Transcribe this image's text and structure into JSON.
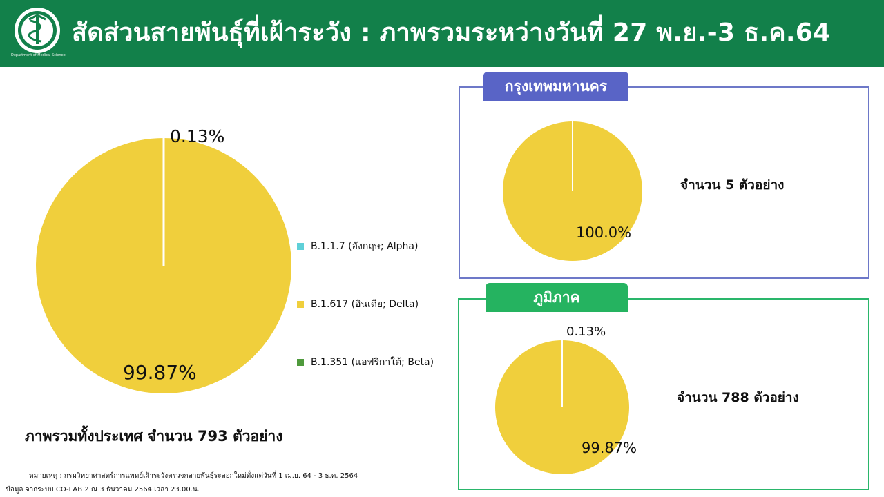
{
  "header": {
    "title": "สัดส่วนสายพันธุ์ที่เฝ้าระวัง : ภาพรวมระหว่างวันที่ 27 พ.ย.-3 ธ.ค.64",
    "logo_subtitle": "Department of Medical Sciences"
  },
  "colors": {
    "header_bg": "#12804a",
    "alpha": "#5fd0d8",
    "delta": "#f0cf3c",
    "beta": "#4f9a3c",
    "bangkok_tab": "#5964c6",
    "region_tab": "#25b360"
  },
  "legend": [
    {
      "label": "B.1.1.7 (อังกฤษ; Alpha)"
    },
    {
      "label": "B.1.617 (อินเดีย; Delta)"
    },
    {
      "label": "B.1.351 (แอฟริกาใต้; Beta)"
    }
  ],
  "chart_data": [
    {
      "type": "pie",
      "categories": [
        "B.1.1.7 (อังกฤษ; Alpha)",
        "B.1.617 (อินเดีย; Delta)",
        "B.1.351 (แอฟริกาใต้; Beta)"
      ],
      "values": [
        0.13,
        99.87,
        0
      ],
      "labels": [
        "0.13%",
        "99.87%"
      ],
      "caption": "ภาพรวมทั้งประเทศ จำนวน 793 ตัวอย่าง"
    },
    {
      "type": "pie",
      "title": "กรุงเทพมหานคร",
      "categories": [
        "B.1.1.7 (อังกฤษ; Alpha)",
        "B.1.617 (อินเดีย; Delta)",
        "B.1.351 (แอฟริกาใต้; Beta)"
      ],
      "values": [
        0,
        100.0,
        0
      ],
      "labels": [
        "100.0%"
      ],
      "caption": "จำนวน 5 ตัวอย่าง"
    },
    {
      "type": "pie",
      "title": "ภูมิภาค",
      "categories": [
        "B.1.1.7 (อังกฤษ; Alpha)",
        "B.1.617 (อินเดีย; Delta)",
        "B.1.351 (แอฟริกาใต้; Beta)"
      ],
      "values": [
        0.13,
        99.87,
        0
      ],
      "labels": [
        "0.13%",
        "99.87%"
      ],
      "caption": "จำนวน 788 ตัวอย่าง"
    }
  ],
  "footnote": "หมายเหตุ :  กรมวิทยาศาสตร์การแพทย์เฝ้าระวังตรวจกลายพันธุ์ระลอกใหม่ตั้งแต่วันที่ 1 เม.ย. 64 -  3 ธ.ค. 2564",
  "source": "ข้อมูล จากระบบ CO-LAB 2 ณ 3 ธันวาคม 2564 เวลา 23.00.น."
}
